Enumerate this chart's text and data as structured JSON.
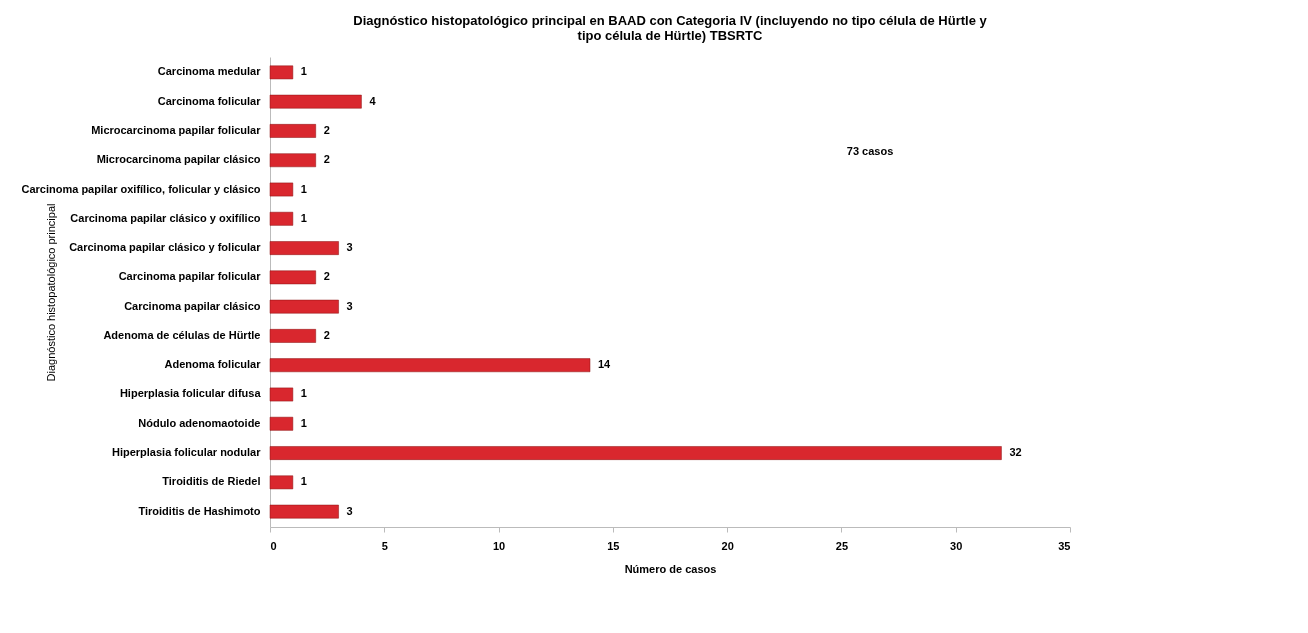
{
  "chart_data": {
    "type": "bar",
    "orientation": "horizontal",
    "title": "Diagnóstico histopatológico principal en BAAD con Categoria IV (incluyendo no tipo célula de Hürtle y tipo célula de Hürtle) TBSRTC",
    "xlabel": "Número de casos",
    "ylabel": "Diagnóstico histopatológico principal",
    "categories": [
      "Carcinoma medular",
      "Carcinoma folicular",
      "Microcarcinoma papilar folicular",
      "Microcarcinoma papilar clásico",
      "Carcinoma papilar oxifílico, folicular y clásico",
      "Carcinoma papilar clásico y oxifílico",
      "Carcinoma papilar clásico y folicular",
      "Carcinoma papilar folicular",
      "Carcinoma papilar clásico",
      "Adenoma de células de Hürtle",
      "Adenoma folicular",
      "Hiperplasia folicular difusa",
      "Nódulo adenomaotoide",
      "Hiperplasia folicular nodular",
      "Tiroiditis de Riedel",
      "Tiroiditis de Hashimoto"
    ],
    "values": [
      1,
      4,
      2,
      2,
      1,
      1,
      3,
      2,
      3,
      2,
      14,
      1,
      1,
      32,
      1,
      3
    ],
    "color": "#d9272e",
    "xlim": [
      0,
      35
    ],
    "xticks": [
      0,
      5,
      10,
      15,
      20,
      25,
      30,
      35
    ],
    "data_labels": true,
    "grid": false,
    "annotations": [
      "73 casos"
    ]
  }
}
